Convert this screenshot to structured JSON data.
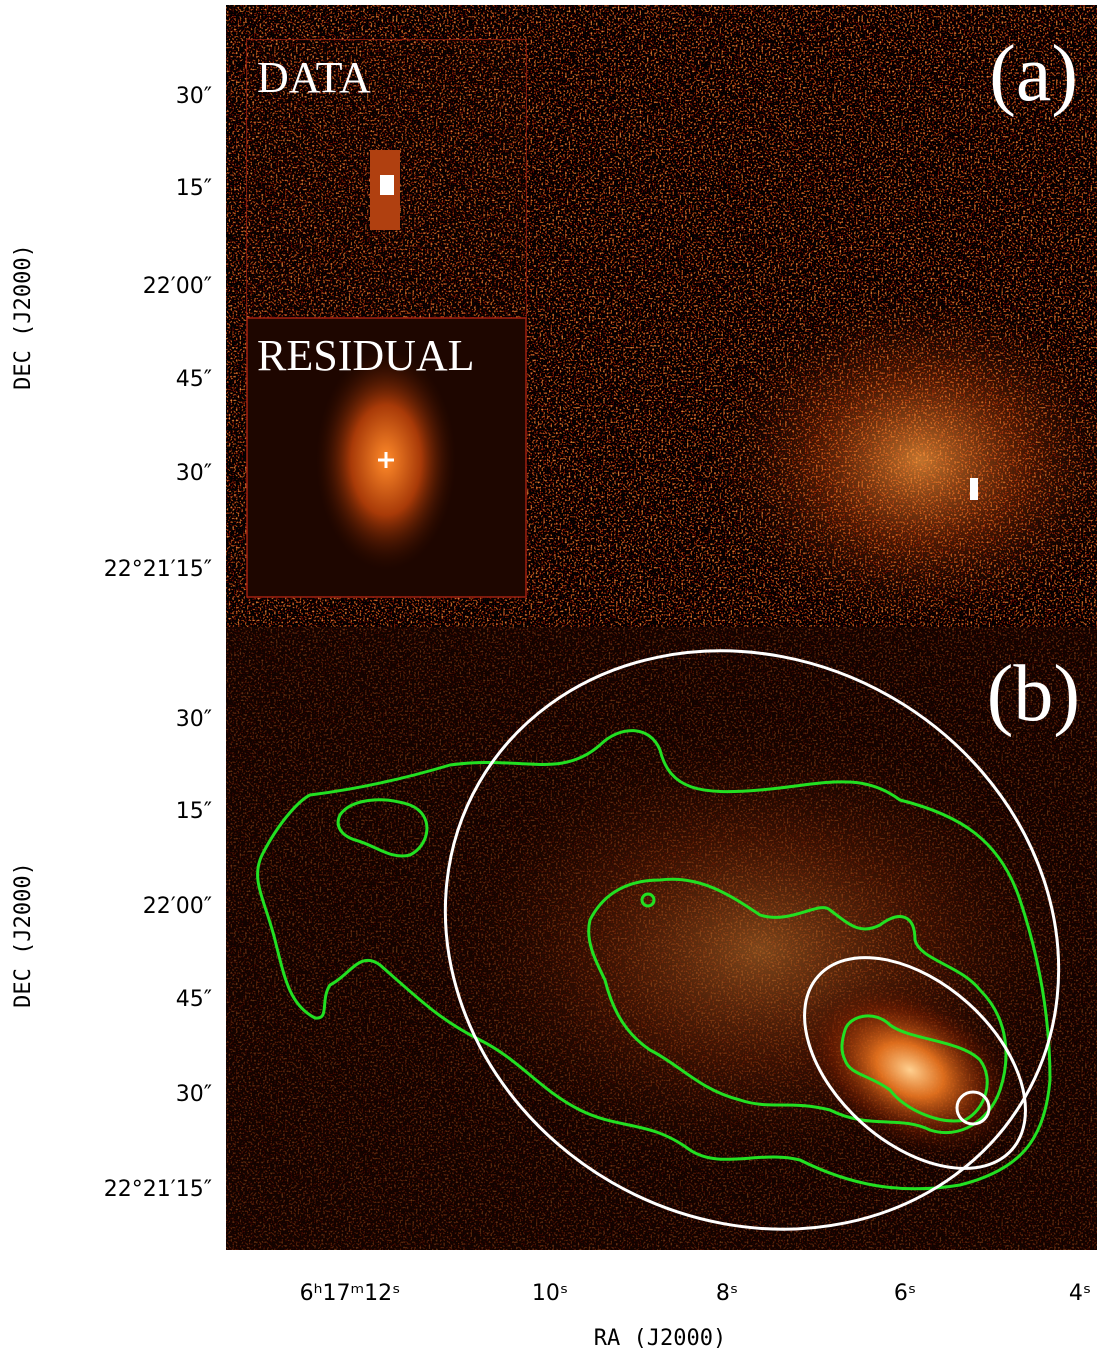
{
  "panels": [
    {
      "label": "(a)",
      "insets": [
        {
          "label": "DATA"
        },
        {
          "label": "RESIDUAL"
        }
      ],
      "y_axis_label": "DEC (J2000)",
      "y_tick_labels": [
        "30″",
        "15″",
        "22′00″",
        "45″",
        "30″",
        "22°21′15″"
      ]
    },
    {
      "label": "(b)",
      "y_axis_label": "DEC (J2000)",
      "y_tick_labels": [
        "30″",
        "15″",
        "22′00″",
        "45″",
        "30″",
        "22°21′15″"
      ]
    }
  ],
  "x_axis_label": "RA (J2000)",
  "x_tick_labels": [
    "6ʰ17ᵐ12ˢ",
    "10ˢ",
    "8ˢ",
    "6ˢ",
    "4ˢ"
  ]
}
